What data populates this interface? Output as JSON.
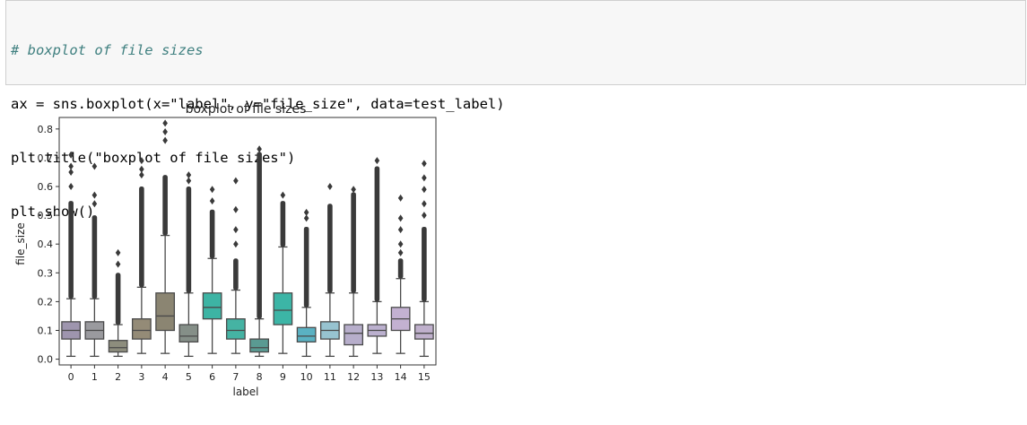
{
  "code": {
    "lines": [
      "# boxplot of file sizes",
      "ax = sns.boxplot(x=\"label\", y=\"file_size\", data=test_label)",
      "plt.title(\"boxplot of file sizes\")",
      "plt.show()"
    ]
  },
  "chart_data": {
    "type": "boxplot",
    "title": "boxplot of file sizes",
    "xlabel": "label",
    "ylabel": "file_size",
    "ylim": [
      -0.02,
      0.84
    ],
    "yticks": [
      0.0,
      0.1,
      0.2,
      0.3,
      0.4,
      0.5,
      0.6,
      0.7,
      0.8
    ],
    "ytick_labels": [
      "0.0",
      "0.1",
      "0.2",
      "0.3",
      "0.4",
      "0.5",
      "0.6",
      "0.7",
      "0.8"
    ],
    "categories": [
      "0",
      "1",
      "2",
      "3",
      "4",
      "5",
      "6",
      "7",
      "8",
      "9",
      "10",
      "11",
      "12",
      "13",
      "14",
      "15"
    ],
    "boxes": [
      {
        "label": "0",
        "color": "#9e95ae",
        "whislo": 0.01,
        "q1": 0.07,
        "med": 0.1,
        "q3": 0.13,
        "whishi": 0.21,
        "outlier_top": 0.71,
        "dense_to": 0.55,
        "fliers": [
          0.6,
          0.65,
          0.67,
          0.71
        ]
      },
      {
        "label": "1",
        "color": "#9a9a9e",
        "whislo": 0.01,
        "q1": 0.07,
        "med": 0.1,
        "q3": 0.13,
        "whishi": 0.21,
        "outlier_top": 0.67,
        "dense_to": 0.5,
        "fliers": [
          0.54,
          0.57,
          0.67
        ]
      },
      {
        "label": "2",
        "color": "#8d8d7d",
        "whislo": 0.01,
        "q1": 0.025,
        "med": 0.04,
        "q3": 0.065,
        "whishi": 0.12,
        "outlier_top": 0.37,
        "dense_to": 0.3,
        "fliers": [
          0.33,
          0.37
        ]
      },
      {
        "label": "3",
        "color": "#948b77",
        "whislo": 0.02,
        "q1": 0.07,
        "med": 0.1,
        "q3": 0.14,
        "whishi": 0.25,
        "outlier_top": 0.69,
        "dense_to": 0.6,
        "fliers": [
          0.64,
          0.66,
          0.69
        ]
      },
      {
        "label": "4",
        "color": "#8b8572",
        "whislo": 0.02,
        "q1": 0.1,
        "med": 0.15,
        "q3": 0.23,
        "whishi": 0.43,
        "outlier_top": 0.82,
        "dense_to": 0.64,
        "fliers": [
          0.76,
          0.79,
          0.82
        ]
      },
      {
        "label": "5",
        "color": "#858f88",
        "whislo": 0.01,
        "q1": 0.06,
        "med": 0.08,
        "q3": 0.12,
        "whishi": 0.23,
        "outlier_top": 0.64,
        "dense_to": 0.6,
        "fliers": [
          0.62,
          0.64
        ]
      },
      {
        "label": "6",
        "color": "#3db4a4",
        "whislo": 0.02,
        "q1": 0.14,
        "med": 0.18,
        "q3": 0.23,
        "whishi": 0.35,
        "outlier_top": 0.59,
        "dense_to": 0.52,
        "fliers": [
          0.55,
          0.59
        ]
      },
      {
        "label": "7",
        "color": "#45b3a3",
        "whislo": 0.02,
        "q1": 0.07,
        "med": 0.1,
        "q3": 0.14,
        "whishi": 0.24,
        "outlier_top": 0.62,
        "dense_to": 0.35,
        "fliers": [
          0.4,
          0.45,
          0.52,
          0.62
        ]
      },
      {
        "label": "8",
        "color": "#5a9a92",
        "whislo": 0.01,
        "q1": 0.025,
        "med": 0.04,
        "q3": 0.07,
        "whishi": 0.14,
        "outlier_top": 0.73,
        "dense_to": 0.72,
        "fliers": [
          0.73
        ]
      },
      {
        "label": "9",
        "color": "#3cb5a6",
        "whislo": 0.02,
        "q1": 0.12,
        "med": 0.17,
        "q3": 0.23,
        "whishi": 0.39,
        "outlier_top": 0.57,
        "dense_to": 0.55,
        "fliers": [
          0.57
        ]
      },
      {
        "label": "10",
        "color": "#5ab1c2",
        "whislo": 0.01,
        "q1": 0.06,
        "med": 0.08,
        "q3": 0.11,
        "whishi": 0.18,
        "outlier_top": 0.51,
        "dense_to": 0.46,
        "fliers": [
          0.49,
          0.51
        ]
      },
      {
        "label": "11",
        "color": "#97c3d0",
        "whislo": 0.01,
        "q1": 0.07,
        "med": 0.1,
        "q3": 0.13,
        "whishi": 0.23,
        "outlier_top": 0.6,
        "dense_to": 0.54,
        "fliers": [
          0.6
        ]
      },
      {
        "label": "12",
        "color": "#b7aecb",
        "whislo": 0.01,
        "q1": 0.05,
        "med": 0.09,
        "q3": 0.12,
        "whishi": 0.23,
        "outlier_top": 0.59,
        "dense_to": 0.58,
        "fliers": [
          0.59
        ]
      },
      {
        "label": "13",
        "color": "#bbb0ce",
        "whislo": 0.02,
        "q1": 0.08,
        "med": 0.1,
        "q3": 0.12,
        "whishi": 0.2,
        "outlier_top": 0.69,
        "dense_to": 0.67,
        "fliers": [
          0.69
        ]
      },
      {
        "label": "14",
        "color": "#c3b1d1",
        "whislo": 0.02,
        "q1": 0.1,
        "med": 0.14,
        "q3": 0.18,
        "whishi": 0.28,
        "outlier_top": 0.56,
        "dense_to": 0.35,
        "fliers": [
          0.37,
          0.4,
          0.45,
          0.49,
          0.56
        ]
      },
      {
        "label": "15",
        "color": "#bfb0cc",
        "whislo": 0.01,
        "q1": 0.07,
        "med": 0.09,
        "q3": 0.12,
        "whishi": 0.2,
        "outlier_top": 0.68,
        "dense_to": 0.46,
        "fliers": [
          0.5,
          0.54,
          0.59,
          0.63,
          0.68
        ]
      }
    ]
  }
}
